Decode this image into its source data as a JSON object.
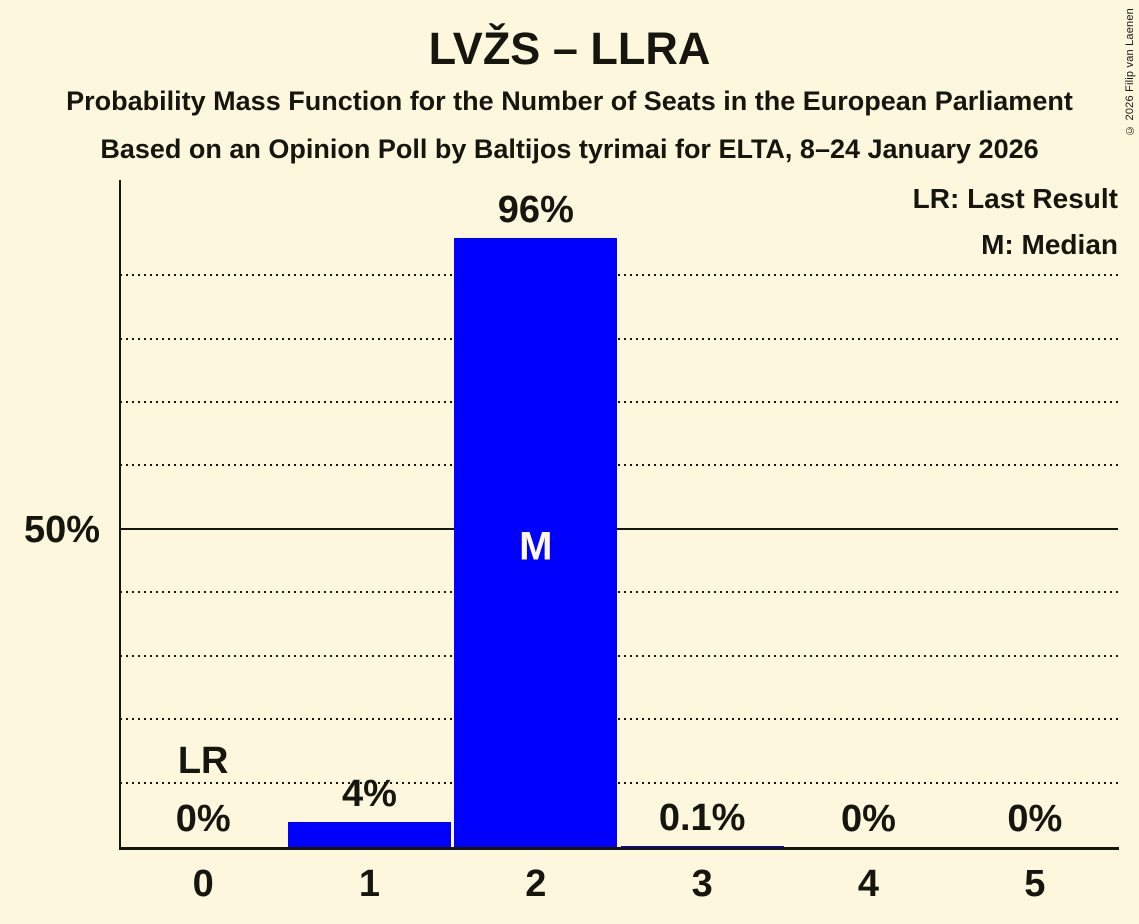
{
  "header": {
    "title": "LVŽS – LLRA",
    "subtitle1": "Probability Mass Function for the Number of Seats in the European Parliament",
    "subtitle2": "Based on an Opinion Poll by Baltijos tyrimai for ELTA, 8–24 January 2026",
    "copyright": "© 2026 Filip van Laenen"
  },
  "legend": {
    "last_result": "LR: Last Result",
    "median": "M: Median"
  },
  "y_axis": {
    "tick_label": "50%"
  },
  "chart_data": {
    "type": "bar",
    "title": "LVŽS – LLRA",
    "categories": [
      "0",
      "1",
      "2",
      "3",
      "4",
      "5"
    ],
    "values": [
      0,
      4,
      96,
      0.1,
      0,
      0
    ],
    "value_labels": [
      "0%",
      "4%",
      "96%",
      "0.1%",
      "0%",
      "0%"
    ],
    "xlabel": "",
    "ylabel": "",
    "ylim": [
      0,
      100
    ],
    "y_gridlines_pct": [
      10,
      20,
      30,
      40,
      50,
      60,
      70,
      80,
      90
    ],
    "y_solid_line_pct": 50,
    "y_tick_labels": [
      "50%"
    ],
    "grid": "horizontal-dotted",
    "legend_entries": [
      "LR: Last Result",
      "M: Median"
    ],
    "legend_position": "top-right",
    "median_category": "2",
    "median_marker": "M",
    "last_result_category": "0",
    "last_result_marker": "LR",
    "bar_color": "#0000ff",
    "background_color": "#fdf8dd",
    "text_color": "#16160e",
    "median_label_color": "#fdf8dd"
  }
}
